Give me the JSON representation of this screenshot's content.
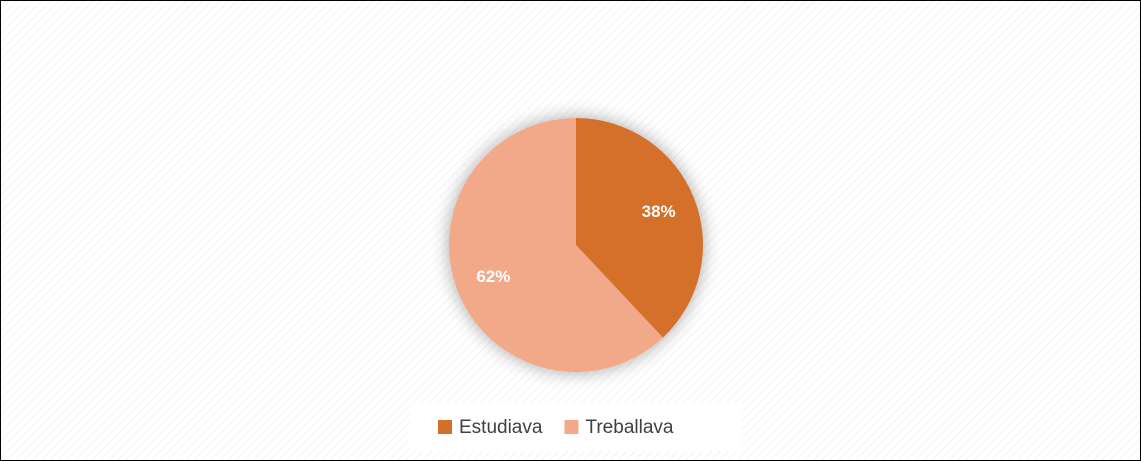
{
  "chart_data": {
    "type": "pie",
    "categories": [
      "Estudiava",
      "Treballava"
    ],
    "values": [
      38,
      62
    ],
    "value_labels": [
      "38%",
      "62%"
    ],
    "colors": [
      "#d46f2b",
      "#f2a98a"
    ],
    "legend": "bottom"
  }
}
